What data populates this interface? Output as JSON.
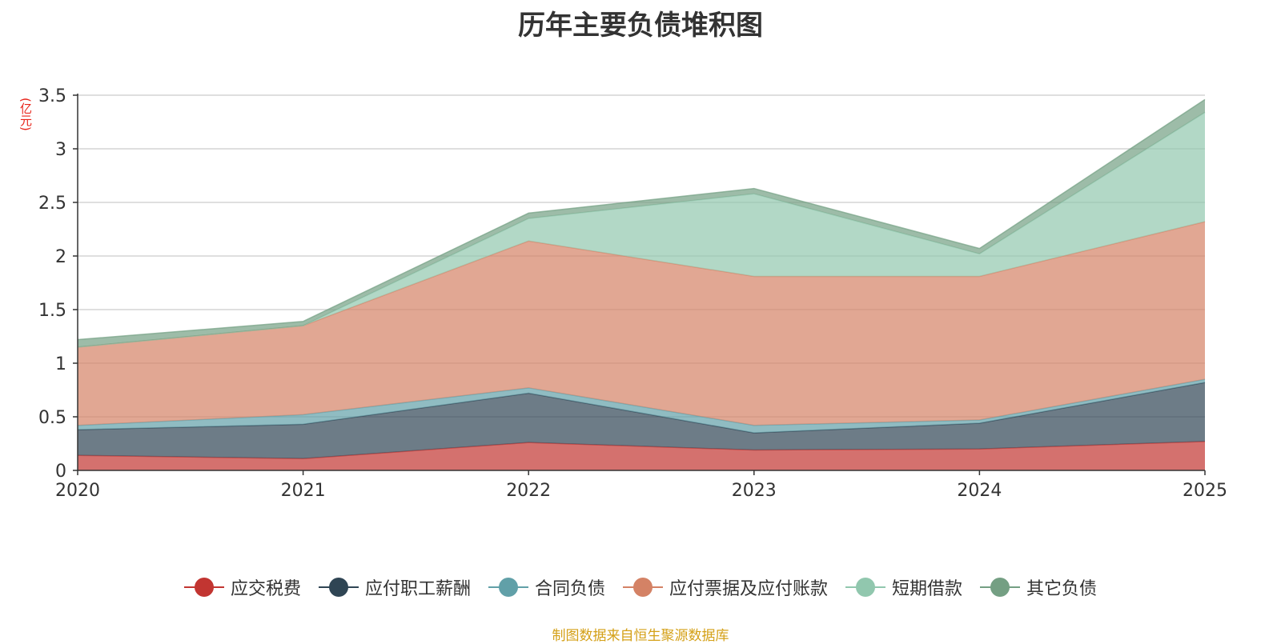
{
  "title": "历年主要负债堆积图",
  "unit_label": "(亿元)",
  "source": "制图数据来自恒生聚源数据库",
  "chart_data": {
    "type": "area",
    "stacked": true,
    "title": "历年主要负债堆积图",
    "ylabel": "(亿元)",
    "x": [
      "2020",
      "2021",
      "2022",
      "2023",
      "2024",
      "2025"
    ],
    "ylim": [
      0,
      3.5
    ],
    "yticks": [
      "0",
      "0.5",
      "1",
      "1.5",
      "2",
      "2.5",
      "3",
      "3.5"
    ],
    "grid": true,
    "legend_position": "bottom",
    "series": [
      {
        "name": "应交税费",
        "color": "#c23531",
        "values": [
          0.14,
          0.11,
          0.26,
          0.19,
          0.2,
          0.27
        ]
      },
      {
        "name": "应付职工薪酬",
        "color": "#2f4554",
        "values": [
          0.24,
          0.32,
          0.46,
          0.16,
          0.24,
          0.55
        ]
      },
      {
        "name": "合同负债",
        "color": "#61a0a8",
        "values": [
          0.04,
          0.09,
          0.05,
          0.07,
          0.03,
          0.03
        ]
      },
      {
        "name": "应付票据及应付账款",
        "color": "#d48265",
        "values": [
          0.73,
          0.83,
          1.37,
          1.39,
          1.34,
          1.47
        ]
      },
      {
        "name": "短期借款",
        "color": "#91c7ae",
        "values": [
          0.0,
          0.0,
          0.21,
          0.77,
          0.21,
          1.02
        ]
      },
      {
        "name": "其它负债",
        "color": "#749f83",
        "values": [
          0.07,
          0.04,
          0.05,
          0.05,
          0.05,
          0.12
        ]
      }
    ]
  }
}
